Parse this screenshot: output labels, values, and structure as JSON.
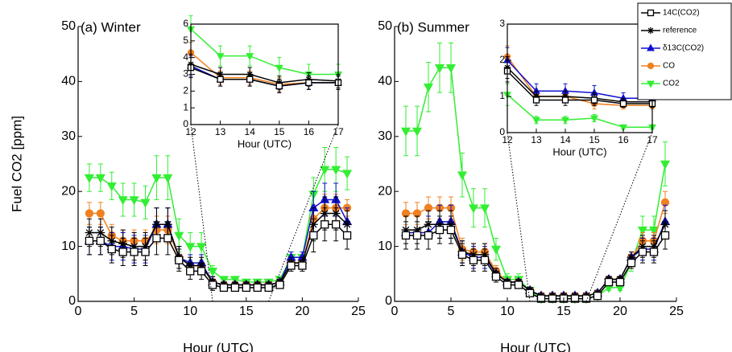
{
  "chart_data": [
    {
      "type": "line",
      "title": "(a) Winter",
      "x_label": "Hour (UTC)",
      "y_label": "Fuel CO2 [ppm]",
      "x": [
        1,
        2,
        3,
        4,
        5,
        6,
        7,
        8,
        9,
        10,
        11,
        12,
        13,
        14,
        15,
        16,
        17,
        18,
        19,
        20,
        21,
        22,
        23,
        24
      ],
      "xlim": [
        0,
        25
      ],
      "xticks": [
        0,
        5,
        10,
        15,
        20,
        25
      ],
      "ylim": [
        0,
        50
      ],
      "yticks": [
        0,
        10,
        20,
        30,
        40,
        50
      ],
      "series": [
        {
          "name": "CO2",
          "color": "#33ee33",
          "marker": "triangle-down",
          "values": [
            22.5,
            22.5,
            21,
            18.5,
            18.5,
            18,
            22.5,
            22.5,
            12,
            10,
            10,
            5.5,
            4,
            4,
            3.5,
            3.5,
            3.5,
            4,
            8,
            8,
            19.5,
            24,
            24,
            23.3
          ],
          "errors": [
            2.5,
            2.5,
            2.5,
            3,
            3,
            3,
            4,
            4,
            3,
            2.5,
            2.5,
            1,
            0.5,
            0.5,
            0.5,
            0.5,
            0.5,
            0.5,
            1,
            1,
            3,
            4,
            4,
            3
          ]
        },
        {
          "name": "CO",
          "color": "#f08020",
          "marker": "circle",
          "values": [
            16,
            16,
            12,
            11,
            11,
            11,
            13,
            13,
            8,
            6.5,
            6.5,
            3.5,
            3,
            3,
            3,
            3,
            3,
            3.5,
            7,
            7,
            15,
            17,
            17,
            17
          ],
          "errors": [
            2,
            2,
            2,
            2,
            2,
            2,
            2.5,
            2.5,
            2,
            1.5,
            1.5,
            1,
            0.5,
            0.5,
            0.5,
            0.5,
            0.5,
            0.5,
            1,
            1,
            2.5,
            2.5,
            2.5,
            1.5
          ]
        },
        {
          "name": "δ13C(CO2)",
          "color": "#1010d0",
          "marker": "triangle-up",
          "values": [
            11,
            11,
            10,
            10,
            9.5,
            9.5,
            14,
            14,
            8,
            7,
            7,
            3.5,
            3,
            3,
            3,
            3,
            3,
            3.5,
            8,
            8,
            17,
            18.5,
            18.5,
            14.5
          ],
          "errors": [
            2.5,
            2.5,
            2.5,
            2.5,
            2.5,
            2.5,
            3,
            3,
            2,
            1.5,
            1.5,
            1,
            0.5,
            0.5,
            0.5,
            0.5,
            0.5,
            0.5,
            1,
            1,
            3,
            3,
            3,
            2.5
          ]
        },
        {
          "name": "reference",
          "color": "#000000",
          "marker": "star",
          "values": [
            12.5,
            12.5,
            11,
            10.5,
            10,
            10,
            14,
            14,
            8,
            6.5,
            6.5,
            3.5,
            3,
            3,
            3,
            3,
            3,
            3.5,
            7,
            7,
            14,
            16,
            16,
            14
          ],
          "errors": [
            2.5,
            2.5,
            2.5,
            2.5,
            2.5,
            2.5,
            3,
            3,
            2,
            1.5,
            1.5,
            1,
            0.5,
            0.5,
            0.5,
            0.5,
            0.5,
            0.5,
            1,
            1,
            3,
            3,
            3,
            2.5
          ]
        },
        {
          "name": "14C(CO2)",
          "color": "#000000",
          "marker": "square",
          "values": [
            11,
            11,
            9.5,
            9,
            9,
            9,
            11.5,
            11.5,
            7.5,
            5.5,
            5.5,
            3,
            2.5,
            2.5,
            2.5,
            2.5,
            2.5,
            3,
            6.5,
            6.5,
            12,
            14,
            14,
            12
          ],
          "errors": [
            2.5,
            2.5,
            2.5,
            2.5,
            2.5,
            2.5,
            3,
            3,
            2,
            1.5,
            1.5,
            1,
            0.5,
            0.5,
            0.5,
            0.5,
            0.5,
            0.5,
            1,
            1,
            3,
            3,
            3,
            2.5
          ]
        }
      ]
    },
    {
      "type": "line",
      "x_label": "Hour (UTC)",
      "x": [
        12,
        13,
        14,
        15,
        16,
        17
      ],
      "xlim": [
        12,
        17
      ],
      "xticks": [
        12,
        13,
        14,
        15,
        16,
        17
      ],
      "ylim": [
        0,
        6
      ],
      "yticks": [
        0,
        1,
        2,
        3,
        4,
        5,
        6
      ],
      "series": [
        {
          "name": "CO2",
          "color": "#33ee33",
          "marker": "triangle-down",
          "values": [
            5.7,
            4.1,
            4.1,
            3.4,
            3,
            3
          ],
          "errors": [
            0.8,
            0.6,
            0.6,
            0.6,
            0.6,
            0.6
          ]
        },
        {
          "name": "CO",
          "color": "#f08020",
          "marker": "circle",
          "values": [
            4.3,
            2.8,
            2.8,
            2.4,
            2.5,
            2.5
          ],
          "errors": [
            0.6,
            0.4,
            0.4,
            0.4,
            0.4,
            0.4
          ]
        },
        {
          "name": "δ13C(CO2)",
          "color": "#1010d0",
          "marker": "triangle-up",
          "values": [
            3.5,
            2.7,
            2.7,
            2.3,
            2.5,
            2.5
          ],
          "errors": [
            0.6,
            0.4,
            0.4,
            0.4,
            0.4,
            0.4
          ]
        },
        {
          "name": "reference",
          "color": "#000000",
          "marker": "star",
          "values": [
            3.6,
            3,
            3,
            2.5,
            2.7,
            2.6
          ],
          "errors": [
            0.6,
            0.4,
            0.4,
            0.4,
            0.4,
            0.4
          ]
        },
        {
          "name": "14C(CO2)",
          "color": "#000000",
          "marker": "square",
          "values": [
            3.4,
            2.7,
            2.7,
            2.3,
            2.5,
            2.5
          ],
          "errors": [
            0.6,
            0.4,
            0.4,
            0.4,
            0.4,
            0.4
          ]
        }
      ]
    },
    {
      "type": "line",
      "title": "(b) Summer",
      "x_label": "Hour (UTC)",
      "x": [
        1,
        2,
        3,
        4,
        5,
        6,
        7,
        8,
        9,
        10,
        11,
        12,
        13,
        14,
        15,
        16,
        17,
        18,
        19,
        20,
        21,
        22,
        23,
        24
      ],
      "xlim": [
        0,
        25
      ],
      "xticks": [
        0,
        5,
        10,
        15,
        20,
        25
      ],
      "ylim": [
        0,
        50
      ],
      "yticks": [
        0,
        10,
        20,
        30,
        40,
        50
      ],
      "series": [
        {
          "name": "CO2",
          "color": "#33ee33",
          "marker": "triangle-down",
          "values": [
            31,
            31,
            39,
            42.5,
            42.5,
            23,
            17,
            17,
            9.5,
            4,
            4,
            2,
            0.5,
            0.5,
            0.5,
            0.5,
            0.5,
            1,
            2.5,
            2.5,
            7,
            13,
            13,
            25
          ],
          "errors": [
            4.5,
            4.5,
            4.5,
            4.5,
            4.5,
            4,
            3.5,
            3.5,
            2,
            1,
            1,
            0.5,
            0.3,
            0.3,
            0.3,
            0.3,
            0.3,
            0.3,
            0.5,
            0.5,
            1.5,
            2.5,
            2.5,
            4
          ]
        },
        {
          "name": "CO",
          "color": "#f08020",
          "marker": "circle",
          "values": [
            16,
            16,
            17,
            17,
            17,
            9.5,
            9,
            9,
            5.5,
            3.5,
            3.5,
            2,
            1,
            1,
            1,
            1,
            1,
            1.5,
            4,
            4,
            8,
            11,
            11,
            18
          ],
          "errors": [
            2,
            2,
            2,
            2,
            2,
            2,
            1.5,
            1.5,
            1,
            0.5,
            0.5,
            0.5,
            0.3,
            0.3,
            0.3,
            0.3,
            0.3,
            0.3,
            0.5,
            0.5,
            1,
            1.5,
            1.5,
            2
          ]
        },
        {
          "name": "δ13C(CO2)",
          "color": "#1010d0",
          "marker": "triangle-up",
          "values": [
            12.5,
            12.5,
            12.5,
            14.5,
            14.5,
            9,
            8,
            8,
            5,
            3.5,
            3.5,
            2,
            1,
            1,
            1,
            1,
            1,
            1.5,
            4,
            4,
            8,
            9.5,
            9.5,
            14.5
          ],
          "errors": [
            3,
            3,
            3,
            3,
            3,
            2,
            2,
            2,
            1,
            0.5,
            0.5,
            0.5,
            0.3,
            0.3,
            0.3,
            0.3,
            0.3,
            0.3,
            0.5,
            0.5,
            1,
            2,
            2,
            3
          ]
        },
        {
          "name": "reference",
          "color": "#000000",
          "marker": "star",
          "values": [
            13,
            13,
            14,
            14,
            14,
            9,
            8.5,
            8.5,
            5,
            3.5,
            3.5,
            2,
            1,
            1,
            1,
            1,
            1,
            1.5,
            4,
            4,
            8,
            10,
            10,
            14
          ],
          "errors": [
            2.5,
            2.5,
            2.5,
            2.5,
            2.5,
            2,
            2,
            2,
            1,
            0.5,
            0.5,
            0.5,
            0.3,
            0.3,
            0.3,
            0.3,
            0.3,
            0.3,
            0.5,
            0.5,
            1,
            2,
            2,
            2.5
          ]
        },
        {
          "name": "14C(CO2)",
          "color": "#000000",
          "marker": "square",
          "values": [
            12,
            12,
            12,
            13,
            13,
            8.5,
            7.5,
            7.5,
            4.5,
            3,
            3,
            1.5,
            0.5,
            0.5,
            0.5,
            0.5,
            0.5,
            1,
            3.5,
            3.5,
            7,
            9,
            9,
            12
          ],
          "errors": [
            2.5,
            2.5,
            2.5,
            2.5,
            2.5,
            2,
            2,
            2,
            1,
            0.5,
            0.5,
            0.5,
            0.3,
            0.3,
            0.3,
            0.3,
            0.3,
            0.3,
            0.5,
            0.5,
            1,
            2,
            2,
            2.5
          ]
        }
      ]
    },
    {
      "type": "line",
      "x_label": "Hour (UTC)",
      "x": [
        12,
        13,
        14,
        15,
        16,
        17
      ],
      "xlim": [
        12,
        17
      ],
      "xticks": [
        12,
        13,
        14,
        15,
        16,
        17
      ],
      "ylim": [
        0,
        3
      ],
      "yticks": [
        0,
        1,
        2,
        3
      ],
      "series": [
        {
          "name": "CO2",
          "color": "#33ee33",
          "marker": "triangle-down",
          "values": [
            1.05,
            0.35,
            0.35,
            0.4,
            0.15,
            0.15
          ],
          "errors": [
            0.3,
            0.1,
            0.1,
            0.1,
            0.05,
            0.05
          ]
        },
        {
          "name": "CO",
          "color": "#f08020",
          "marker": "circle",
          "values": [
            2.1,
            1.0,
            1.0,
            0.8,
            0.75,
            0.75
          ],
          "errors": [
            0.3,
            0.15,
            0.15,
            0.15,
            0.1,
            0.1
          ]
        },
        {
          "name": "δ13C(CO2)",
          "color": "#1010d0",
          "marker": "triangle-up",
          "values": [
            2.0,
            1.15,
            1.15,
            1.1,
            0.95,
            0.95
          ],
          "errors": [
            0.35,
            0.2,
            0.2,
            0.2,
            0.15,
            0.15
          ]
        },
        {
          "name": "reference",
          "color": "#000000",
          "marker": "star",
          "values": [
            1.8,
            1.0,
            1.0,
            0.95,
            0.85,
            0.85
          ],
          "errors": [
            0.3,
            0.15,
            0.15,
            0.15,
            0.1,
            0.1
          ]
        },
        {
          "name": "14C(CO2)",
          "color": "#000000",
          "marker": "square",
          "values": [
            1.7,
            0.9,
            0.9,
            0.9,
            0.8,
            0.8
          ],
          "errors": [
            0.3,
            0.15,
            0.15,
            0.15,
            0.1,
            0.1
          ]
        }
      ]
    }
  ]
}
